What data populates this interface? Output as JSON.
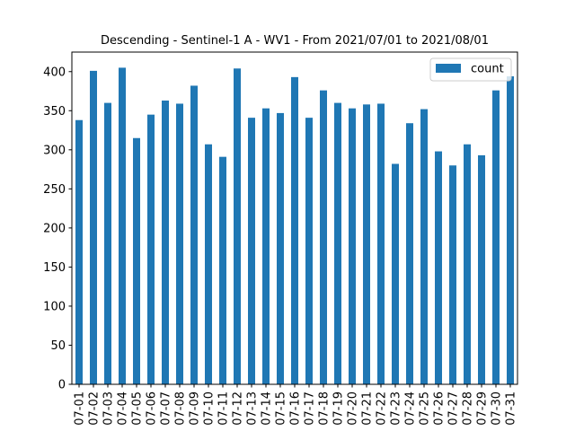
{
  "chart_data": {
    "type": "bar",
    "title": "Descending - Sentinel-1 A - WV1 - From 2021/07/01 to 2021/08/01",
    "xlabel": "",
    "ylabel": "",
    "ylim": [
      0,
      425
    ],
    "yticks": [
      0,
      50,
      100,
      150,
      200,
      250,
      300,
      350,
      400
    ],
    "grid": false,
    "legend_position": "top-right",
    "categories": [
      "07-01",
      "07-02",
      "07-03",
      "07-04",
      "07-05",
      "07-06",
      "07-07",
      "07-08",
      "07-09",
      "07-10",
      "07-11",
      "07-12",
      "07-13",
      "07-14",
      "07-15",
      "07-16",
      "07-17",
      "07-18",
      "07-19",
      "07-20",
      "07-21",
      "07-22",
      "07-23",
      "07-24",
      "07-25",
      "07-26",
      "07-27",
      "07-28",
      "07-29",
      "07-30",
      "07-31"
    ],
    "series": [
      {
        "name": "count",
        "color": "#1f77b4",
        "values": [
          338,
          401,
          360,
          405,
          315,
          345,
          363,
          359,
          382,
          307,
          291,
          404,
          341,
          353,
          347,
          393,
          341,
          376,
          360,
          353,
          358,
          359,
          282,
          334,
          352,
          298,
          280,
          307,
          293,
          376,
          394
        ]
      }
    ]
  }
}
